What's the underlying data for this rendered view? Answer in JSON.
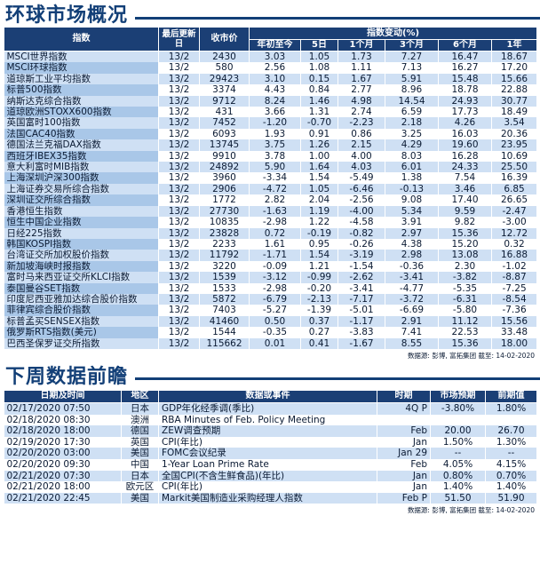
{
  "section1": {
    "title": "环球市场概况",
    "headers": {
      "index": "指数",
      "updated": "最后更新日",
      "close": "收市价",
      "change_group": "指数变动(%)",
      "ytd": "年初至今",
      "d5": "5日",
      "m1": "1个月",
      "m3": "3个月",
      "m6": "6个月",
      "y1": "1年"
    },
    "rows": [
      {
        "name": "MSCI世界指数",
        "date": "13/2",
        "close": "2430",
        "ytd": "3.03",
        "d5": "1.05",
        "m1": "1.73",
        "m3": "7.27",
        "m6": "16.47",
        "y1": "18.67"
      },
      {
        "name": "MSCI环球指数",
        "date": "13/2",
        "close": "580",
        "ytd": "2.56",
        "d5": "1.08",
        "m1": "1.11",
        "m3": "7.13",
        "m6": "16.27",
        "y1": "17.20"
      },
      {
        "name": "道琼斯工业平均指数",
        "date": "13/2",
        "close": "29423",
        "ytd": "3.10",
        "d5": "0.15",
        "m1": "1.67",
        "m3": "5.91",
        "m6": "15.48",
        "y1": "15.66"
      },
      {
        "name": "标普500指数",
        "date": "13/2",
        "close": "3374",
        "ytd": "4.43",
        "d5": "0.84",
        "m1": "2.77",
        "m3": "8.96",
        "m6": "18.78",
        "y1": "22.88"
      },
      {
        "name": "纳斯达克综合指数",
        "date": "13/2",
        "close": "9712",
        "ytd": "8.24",
        "d5": "1.46",
        "m1": "4.98",
        "m3": "14.54",
        "m6": "24.93",
        "y1": "30.77"
      },
      {
        "name": "道琼欧洲STOXX600指数",
        "date": "13/2",
        "close": "431",
        "ytd": "3.66",
        "d5": "1.31",
        "m1": "2.74",
        "m3": "6.59",
        "m6": "17.73",
        "y1": "18.49"
      },
      {
        "name": "英国富时100指数",
        "date": "13/2",
        "close": "7452",
        "ytd": "-1.20",
        "d5": "-0.70",
        "m1": "-2.23",
        "m3": "2.18",
        "m6": "4.26",
        "y1": "3.54"
      },
      {
        "name": "法国CAC40指数",
        "date": "13/2",
        "close": "6093",
        "ytd": "1.93",
        "d5": "0.91",
        "m1": "0.86",
        "m3": "3.25",
        "m6": "16.03",
        "y1": "20.36"
      },
      {
        "name": "德国法兰克福DAX指数",
        "date": "13/2",
        "close": "13745",
        "ytd": "3.75",
        "d5": "1.26",
        "m1": "2.15",
        "m3": "4.29",
        "m6": "19.60",
        "y1": "23.95"
      },
      {
        "name": "西班牙IBEX35指数",
        "date": "13/2",
        "close": "9910",
        "ytd": "3.78",
        "d5": "1.00",
        "m1": "4.00",
        "m3": "8.03",
        "m6": "16.28",
        "y1": "10.69"
      },
      {
        "name": "意大利富时MIB指数",
        "date": "13/2",
        "close": "24892",
        "ytd": "5.90",
        "d5": "1.64",
        "m1": "4.03",
        "m3": "6.01",
        "m6": "24.33",
        "y1": "25.50"
      },
      {
        "name": "上海深圳沪深300指数",
        "date": "13/2",
        "close": "3960",
        "ytd": "-3.34",
        "d5": "1.54",
        "m1": "-5.49",
        "m3": "1.38",
        "m6": "7.54",
        "y1": "16.39"
      },
      {
        "name": "上海证券交易所综合指数",
        "date": "13/2",
        "close": "2906",
        "ytd": "-4.72",
        "d5": "1.05",
        "m1": "-6.46",
        "m3": "-0.13",
        "m6": "3.46",
        "y1": "6.85"
      },
      {
        "name": "深圳证交所综合指数",
        "date": "13/2",
        "close": "1772",
        "ytd": "2.82",
        "d5": "2.04",
        "m1": "-2.56",
        "m3": "9.08",
        "m6": "17.40",
        "y1": "26.65"
      },
      {
        "name": "香港恒生指数",
        "date": "13/2",
        "close": "27730",
        "ytd": "-1.63",
        "d5": "1.19",
        "m1": "-4.00",
        "m3": "5.34",
        "m6": "9.59",
        "y1": "-2.47"
      },
      {
        "name": "恒生中国企业指数",
        "date": "13/2",
        "close": "10835",
        "ytd": "-2.98",
        "d5": "1.22",
        "m1": "-4.58",
        "m3": "3.91",
        "m6": "9.82",
        "y1": "-3.00"
      },
      {
        "name": "日经225指数",
        "date": "13/2",
        "close": "23828",
        "ytd": "0.72",
        "d5": "-0.19",
        "m1": "-0.82",
        "m3": "2.97",
        "m6": "15.36",
        "y1": "12.72"
      },
      {
        "name": "韩国KOSPI指数",
        "date": "13/2",
        "close": "2233",
        "ytd": "1.61",
        "d5": "0.95",
        "m1": "-0.26",
        "m3": "4.38",
        "m6": "15.20",
        "y1": "0.32"
      },
      {
        "name": "台湾证交所加权股价指数",
        "date": "13/2",
        "close": "11792",
        "ytd": "-1.71",
        "d5": "1.54",
        "m1": "-3.19",
        "m3": "2.98",
        "m6": "13.08",
        "y1": "16.88"
      },
      {
        "name": "新加坡海峡时报指数",
        "date": "13/2",
        "close": "3220",
        "ytd": "-0.09",
        "d5": "1.21",
        "m1": "-1.54",
        "m3": "-0.36",
        "m6": "2.30",
        "y1": "-1.02"
      },
      {
        "name": "富时马来西亚证交所KLCI指数",
        "date": "13/2",
        "close": "1539",
        "ytd": "-3.12",
        "d5": "-0.99",
        "m1": "-2.62",
        "m3": "-3.41",
        "m6": "-3.82",
        "y1": "-8.87"
      },
      {
        "name": "泰国曼谷SET指数",
        "date": "13/2",
        "close": "1533",
        "ytd": "-2.98",
        "d5": "-0.20",
        "m1": "-3.41",
        "m3": "-4.77",
        "m6": "-5.35",
        "y1": "-7.25"
      },
      {
        "name": "印度尼西亚雅加达综合股价指数",
        "date": "13/2",
        "close": "5872",
        "ytd": "-6.79",
        "d5": "-2.13",
        "m1": "-7.17",
        "m3": "-3.72",
        "m6": "-6.31",
        "y1": "-8.54"
      },
      {
        "name": "菲律宾综合股价指数",
        "date": "13/2",
        "close": "7403",
        "ytd": "-5.27",
        "d5": "-1.39",
        "m1": "-5.01",
        "m3": "-6.69",
        "m6": "-5.80",
        "y1": "-7.36"
      },
      {
        "name": "标普孟买SENSEX指数",
        "date": "13/2",
        "close": "41460",
        "ytd": "0.50",
        "d5": "0.37",
        "m1": "-1.17",
        "m3": "2.91",
        "m6": "11.12",
        "y1": "15.56"
      },
      {
        "name": "俄罗斯RTS指数(美元)",
        "date": "13/2",
        "close": "1544",
        "ytd": "-0.35",
        "d5": "0.27",
        "m1": "-3.83",
        "m3": "7.41",
        "m6": "22.53",
        "y1": "33.48"
      },
      {
        "name": "巴西圣保罗证交所指数",
        "date": "13/2",
        "close": "115662",
        "ytd": "0.01",
        "d5": "0.41",
        "m1": "-1.67",
        "m3": "8.55",
        "m6": "15.36",
        "y1": "18.00"
      }
    ],
    "source": "数据源: 彭博, 富拓集团 截至: 14-02-2020"
  },
  "section2": {
    "title": "下周数据前瞻",
    "headers": {
      "datetime": "日期及时间",
      "region": "地区",
      "event": "数据或事件",
      "period": "时期",
      "forecast": "市场预期",
      "previous": "前期值"
    },
    "rows": [
      {
        "datetime": "02/17/2020 07:50",
        "region": "日本",
        "event": "GDP年化经季调(季比)",
        "period": "4Q P",
        "forecast": "-3.80%",
        "previous": "1.80%"
      },
      {
        "datetime": "02/18/2020 08:30",
        "region": "澳洲",
        "event": "RBA Minutes of Feb. Policy Meeting",
        "period": "",
        "forecast": "",
        "previous": ""
      },
      {
        "datetime": "02/18/2020 18:00",
        "region": "德国",
        "event": "ZEW调查预期",
        "period": "Feb",
        "forecast": "20.00",
        "previous": "26.70"
      },
      {
        "datetime": "02/19/2020 17:30",
        "region": "英国",
        "event": "CPI(年比)",
        "period": "Jan",
        "forecast": "1.50%",
        "previous": "1.30%"
      },
      {
        "datetime": "02/20/2020 03:00",
        "region": "美国",
        "event": "FOMC会议纪录",
        "period": "Jan 29",
        "forecast": "--",
        "previous": "--"
      },
      {
        "datetime": "02/20/2020 09:30",
        "region": "中国",
        "event": "1-Year Loan Prime Rate",
        "period": "Feb",
        "forecast": "4.05%",
        "previous": "4.15%"
      },
      {
        "datetime": "02/21/2020 07:30",
        "region": "日本",
        "event": "全国CPI(不含生鲜食品)(年比)",
        "period": "Jan",
        "forecast": "0.80%",
        "previous": "0.70%"
      },
      {
        "datetime": "02/21/2020 18:00",
        "region": "欧元区",
        "event": "CPI(年比)",
        "period": "Jan",
        "forecast": "1.40%",
        "previous": "1.40%"
      },
      {
        "datetime": "02/21/2020 22:45",
        "region": "美国",
        "event": "Markit美国制造业采购经理人指数",
        "period": "Feb P",
        "forecast": "51.50",
        "previous": "51.90"
      }
    ],
    "source": "数据源: 彭博, 富拓集团 截至: 14-02-2020"
  }
}
